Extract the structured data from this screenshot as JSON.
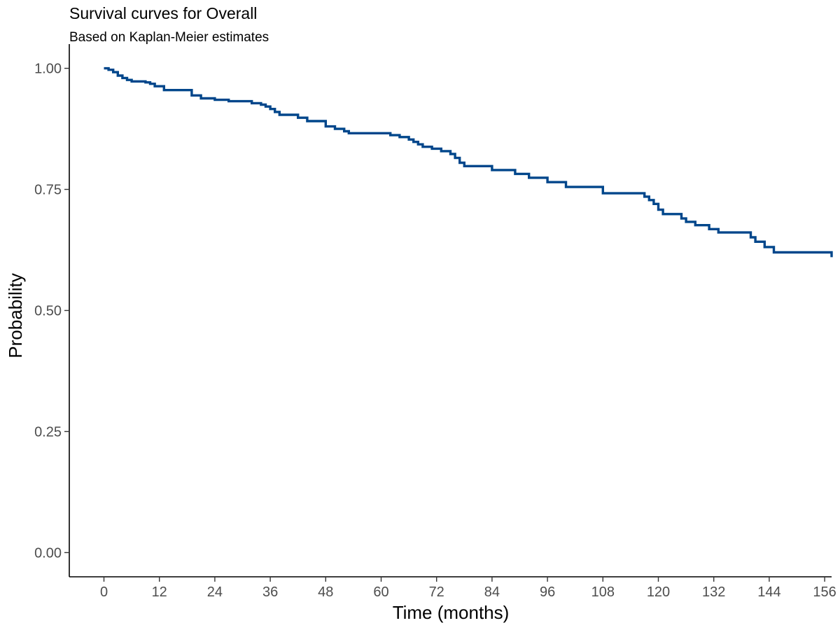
{
  "chart_data": {
    "type": "line",
    "step": true,
    "title": "Survival curves for Overall",
    "subtitle": "Based on Kaplan-Meier estimates",
    "xlabel": "Time (months)",
    "ylabel": "Probability",
    "xlim": [
      -7.5,
      157.5
    ],
    "ylim": [
      -0.05,
      1.05
    ],
    "xticks": [
      0,
      12,
      24,
      36,
      48,
      60,
      72,
      84,
      96,
      108,
      120,
      132,
      144,
      156
    ],
    "yticks": [
      0.0,
      0.25,
      0.5,
      0.75,
      1.0
    ],
    "ytick_labels": [
      "0.00",
      "0.25",
      "0.50",
      "0.75",
      "1.00"
    ],
    "grid": false,
    "series_color": "#00468b",
    "series": [
      {
        "x": [
          0,
          1,
          2,
          3,
          4,
          5,
          6,
          9,
          10,
          11,
          13,
          19,
          21,
          24,
          27,
          32,
          34,
          35,
          36,
          37,
          38,
          42,
          44,
          48,
          50,
          52,
          53,
          62,
          64,
          66,
          67,
          68,
          69,
          71,
          73,
          75,
          76,
          77,
          78,
          84,
          89,
          92,
          96,
          100,
          108,
          117,
          118,
          119,
          120,
          121,
          125,
          126,
          128,
          131,
          133,
          140,
          141,
          143,
          145,
          157.5
        ],
        "y": [
          1.0,
          0.997,
          0.992,
          0.985,
          0.98,
          0.976,
          0.973,
          0.971,
          0.968,
          0.963,
          0.955,
          0.944,
          0.938,
          0.935,
          0.932,
          0.928,
          0.925,
          0.921,
          0.916,
          0.91,
          0.904,
          0.898,
          0.891,
          0.88,
          0.875,
          0.87,
          0.866,
          0.862,
          0.858,
          0.853,
          0.848,
          0.843,
          0.838,
          0.834,
          0.829,
          0.823,
          0.815,
          0.805,
          0.798,
          0.79,
          0.782,
          0.774,
          0.765,
          0.755,
          0.742,
          0.735,
          0.728,
          0.72,
          0.708,
          0.699,
          0.69,
          0.683,
          0.676,
          0.668,
          0.661,
          0.651,
          0.642,
          0.631,
          0.62,
          0.61
        ]
      }
    ]
  }
}
